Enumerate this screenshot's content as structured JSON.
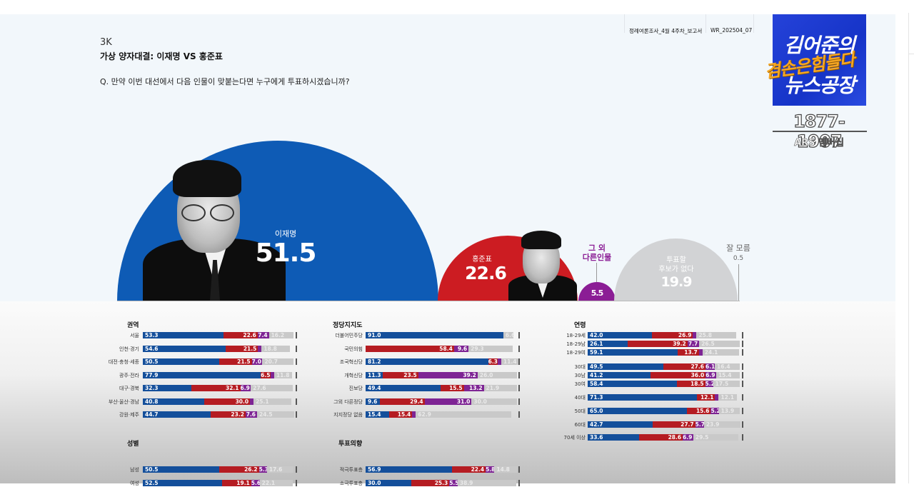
{
  "header": {
    "code": "3K",
    "title": "가상 양자대결: 이재명 VS 홍준표",
    "question": "Q. 만약 이번 대선에서 다음 인물이 맞붙는다면 누구에게 투표하시겠습니까?",
    "doc_name": "정례여론조사_4월 4주차_보고서",
    "doc_code": "WR_202504_07"
  },
  "logo": {
    "line1": "김어준의",
    "line2": "겸손은힘들다",
    "line3": "뉴스공장",
    "phone": "1877-1907",
    "ars": "ARS 멤버십"
  },
  "colors": {
    "lee": "#0e5bb5",
    "hong": "#cc1c22",
    "other": "#8b1d95",
    "none": "#d2d3d5",
    "bar_blue": "#144f9b",
    "bar_red": "#b51c22",
    "bar_purple": "#7e2494",
    "bar_gray": "#c9c9c9"
  },
  "headline": {
    "lee": {
      "name": "이재명",
      "value": "51.5"
    },
    "hong": {
      "name": "홍준표",
      "value": "22.6"
    },
    "other": {
      "name_line1": "그 외",
      "name_line2": "다른인물",
      "value": "5.5"
    },
    "none": {
      "name_line1": "투표할",
      "name_line2": "후보가 없다",
      "value": "19.9"
    },
    "unknown": {
      "name": "잘 모름",
      "value": "0.5"
    }
  },
  "chart_data": [
    {
      "type": "pie",
      "title": "가상 양자대결: 이재명 VS 홍준표",
      "subtitle": "Q. 만약 이번 대선에서 다음 인물이 맞붙는다면 누구에게 투표하시겠습니까?",
      "categories": [
        "이재명",
        "홍준표",
        "그 외 다른인물",
        "투표할 후보가 없다",
        "잘 모름"
      ],
      "values": [
        51.5,
        22.6,
        5.5,
        19.9,
        0.5
      ],
      "note": "half-circle proportional areas"
    },
    {
      "type": "bar",
      "stacked": true,
      "orientation": "horizontal",
      "title": "권역",
      "legend": [
        "이재명",
        "홍준표",
        "그 외 다른인물",
        "투표할 후보가 없다"
      ],
      "categories": [
        "서울",
        "인천·경기",
        "대전·충청·세종",
        "광주·전라",
        "대구·경북",
        "부산·울산·경남",
        "강원·제주"
      ],
      "series": [
        {
          "name": "이재명",
          "values": [
            53.3,
            54.6,
            50.5,
            77.9,
            32.3,
            40.8,
            44.7
          ]
        },
        {
          "name": "홍준표",
          "values": [
            22.6,
            21.5,
            21.5,
            6.5,
            32.1,
            30.0,
            23.2
          ]
        },
        {
          "name": "그 외 다른인물",
          "values": [
            7.4,
            null,
            7.0,
            null,
            6.9,
            null,
            7.6
          ]
        },
        {
          "name": "투표할 후보가 없다",
          "values": [
            16.2,
            18.8,
            20.7,
            11.8,
            27.6,
            25.1,
            24.5
          ]
        }
      ]
    },
    {
      "type": "bar",
      "stacked": true,
      "orientation": "horizontal",
      "title": "성별",
      "categories": [
        "남성",
        "여성"
      ],
      "series": [
        {
          "name": "이재명",
          "values": [
            50.5,
            52.5
          ]
        },
        {
          "name": "홍준표",
          "values": [
            26.2,
            19.1
          ]
        },
        {
          "name": "그 외 다른인물",
          "values": [
            5.3,
            5.6
          ]
        },
        {
          "name": "투표할 후보가 없다",
          "values": [
            17.6,
            22.1
          ]
        }
      ]
    },
    {
      "type": "bar",
      "stacked": true,
      "orientation": "horizontal",
      "title": "정당지지도",
      "categories": [
        "더불어민주당",
        "국민의힘",
        "조국혁신당",
        "개혁신당",
        "진보당",
        "그외 다른정당",
        "지지정당 없음"
      ],
      "series": [
        {
          "name": "이재명",
          "values": [
            91.0,
            null,
            81.2,
            11.3,
            49.4,
            9.6,
            15.4
          ]
        },
        {
          "name": "홍준표",
          "values": [
            null,
            58.4,
            6.3,
            23.5,
            15.5,
            29.4,
            15.4
          ]
        },
        {
          "name": "그 외 다른인물",
          "values": [
            null,
            9.6,
            null,
            39.2,
            13.2,
            31.0,
            null
          ]
        },
        {
          "name": "투표할 후보가 없다",
          "values": [
            6.6,
            29.3,
            11.4,
            26.0,
            21.9,
            30.0,
            62.9
          ]
        }
      ]
    },
    {
      "type": "bar",
      "stacked": true,
      "orientation": "horizontal",
      "title": "투표의향",
      "categories": [
        "적극투표층",
        "소극투표층"
      ],
      "series": [
        {
          "name": "이재명",
          "values": [
            56.9,
            30.0
          ]
        },
        {
          "name": "홍준표",
          "values": [
            22.4,
            25.3
          ]
        },
        {
          "name": "그 외 다른인물",
          "values": [
            5.8,
            5.5
          ]
        },
        {
          "name": "투표할 후보가 없다",
          "values": [
            14.8,
            38.9
          ]
        }
      ]
    },
    {
      "type": "bar",
      "stacked": true,
      "orientation": "horizontal",
      "title": "연령",
      "categories": [
        "18-29세",
        "18-29남",
        "18-29여",
        "30대",
        "30남",
        "30여",
        "40대",
        "50대",
        "60대",
        "70세 이상"
      ],
      "series": [
        {
          "name": "이재명",
          "values": [
            42.0,
            26.1,
            59.1,
            49.5,
            41.2,
            58.4,
            71.3,
            65.0,
            42.7,
            33.6
          ]
        },
        {
          "name": "홍준표",
          "values": [
            26.9,
            39.2,
            13.7,
            27.6,
            36.0,
            18.5,
            12.1,
            15.6,
            27.7,
            28.6
          ]
        },
        {
          "name": "그 외 다른인물",
          "values": [
            null,
            7.7,
            null,
            6.1,
            6.9,
            5.2,
            null,
            5.2,
            5.7,
            6.9
          ]
        },
        {
          "name": "투표할 후보가 없다",
          "values": [
            25.8,
            26.5,
            24.1,
            16.4,
            15.4,
            17.5,
            12.1,
            13.9,
            23.9,
            29.5
          ]
        }
      ]
    }
  ],
  "groups": {
    "region": {
      "title": "권역",
      "rows": [
        {
          "label": "서울",
          "v": [
            "53.3",
            "22.6",
            "7.4",
            "16.2"
          ]
        },
        {
          "label": "인천·경기",
          "v": [
            "54.6",
            "21.5",
            "",
            "18.8"
          ]
        },
        {
          "label": "대전·충청·세종",
          "v": [
            "50.5",
            "21.5",
            "7.0",
            "20.7"
          ]
        },
        {
          "label": "광주·전라",
          "v": [
            "77.9",
            "6.5",
            "",
            "11.8"
          ]
        },
        {
          "label": "대구·경북",
          "v": [
            "32.3",
            "32.1",
            "6.9",
            "27.6"
          ]
        },
        {
          "label": "부산·울산·경남",
          "v": [
            "40.8",
            "30.0",
            "",
            "25.1"
          ]
        },
        {
          "label": "강원·제주",
          "v": [
            "44.7",
            "23.2",
            "7.6",
            "24.5"
          ]
        }
      ]
    },
    "gender": {
      "title": "성별",
      "rows": [
        {
          "label": "남성",
          "v": [
            "50.5",
            "26.2",
            "5.3",
            "17.6"
          ]
        },
        {
          "label": "여성",
          "v": [
            "52.5",
            "19.1",
            "5.6",
            "22.1"
          ]
        }
      ]
    },
    "party": {
      "title": "정당지지도",
      "rows": [
        {
          "label": "더불어민주당",
          "v": [
            "91.0",
            "",
            "",
            "6.6"
          ]
        },
        {
          "label": "국민의힘",
          "v": [
            "",
            "58.4",
            "9.6",
            "29.3"
          ]
        },
        {
          "label": "조국혁신당",
          "v": [
            "81.2",
            "6.3",
            "",
            "11.4"
          ]
        },
        {
          "label": "개혁신당",
          "v": [
            "11.3",
            "23.5",
            "39.2",
            "26.0"
          ]
        },
        {
          "label": "진보당",
          "v": [
            "49.4",
            "15.5",
            "13.2",
            "21.9"
          ]
        },
        {
          "label": "그외 다른정당",
          "v": [
            "9.6",
            "29.4",
            "31.0",
            "30.0"
          ]
        },
        {
          "label": "지지정당 없음",
          "v": [
            "15.4",
            "15.4",
            "",
            "62.9"
          ]
        }
      ]
    },
    "intent": {
      "title": "투표의향",
      "rows": [
        {
          "label": "적극투표층",
          "v": [
            "56.9",
            "22.4",
            "5.8",
            "14.8"
          ]
        },
        {
          "label": "소극투표층",
          "v": [
            "30.0",
            "25.3",
            "5.5",
            "38.9"
          ]
        }
      ]
    },
    "age": {
      "title": "연령",
      "rows": [
        {
          "label": "18-29세",
          "v": [
            "42.0",
            "26.9",
            "",
            "25.8"
          ]
        },
        {
          "label": "18-29남",
          "v": [
            "26.1",
            "39.2",
            "7.7",
            "26.5"
          ]
        },
        {
          "label": "18-29여",
          "v": [
            "59.1",
            "13.7",
            "",
            "24.1"
          ]
        },
        {
          "label": "30대",
          "v": [
            "49.5",
            "27.6",
            "6.1",
            "16.4"
          ]
        },
        {
          "label": "30남",
          "v": [
            "41.2",
            "36.0",
            "6.9",
            "15.4"
          ]
        },
        {
          "label": "30여",
          "v": [
            "58.4",
            "18.5",
            "5.2",
            "17.5"
          ]
        },
        {
          "label": "40대",
          "v": [
            "71.3",
            "12.1",
            "",
            "12.1"
          ]
        },
        {
          "label": "50대",
          "v": [
            "65.0",
            "15.6",
            "5.2",
            "13.9"
          ]
        },
        {
          "label": "60대",
          "v": [
            "42.7",
            "27.7",
            "5.7",
            "23.9"
          ]
        },
        {
          "label": "70세 이상",
          "v": [
            "33.6",
            "28.6",
            "6.9",
            "29.5"
          ]
        }
      ]
    }
  }
}
